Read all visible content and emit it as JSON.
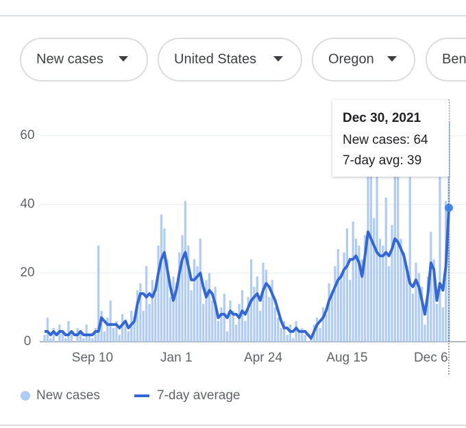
{
  "filters": [
    "New cases",
    "United States",
    "Oregon",
    "Ben"
  ],
  "chart_data": {
    "type": "bar_line",
    "categories": [
      null,
      null,
      null,
      null,
      null,
      null,
      null,
      null,
      null,
      null,
      null,
      null,
      null,
      null,
      null,
      null,
      "Sep 10",
      null,
      null,
      null,
      null,
      null,
      null,
      null,
      null,
      null,
      null,
      null,
      null,
      null,
      null,
      null,
      null,
      null,
      null,
      null,
      null,
      null,
      null,
      null,
      null,
      null,
      null,
      null,
      "Jan 1",
      null,
      null,
      null,
      null,
      null,
      null,
      null,
      null,
      null,
      null,
      null,
      null,
      null,
      null,
      null,
      null,
      null,
      null,
      null,
      null,
      null,
      null,
      null,
      null,
      null,
      null,
      null,
      null,
      "Apr 24",
      null,
      null,
      null,
      null,
      null,
      null,
      null,
      null,
      null,
      null,
      null,
      null,
      null,
      null,
      null,
      null,
      null,
      null,
      null,
      null,
      null,
      null,
      null,
      null,
      null,
      null,
      null,
      "Aug 15",
      null,
      null,
      null,
      null,
      null,
      null,
      null,
      null,
      null,
      null,
      null,
      null,
      null,
      null,
      null,
      null,
      null,
      null,
      null,
      null,
      null,
      null,
      null,
      null,
      null,
      null,
      null,
      "Dec 6",
      null,
      null,
      null,
      null,
      null,
      null
    ],
    "series": [
      {
        "name": "New cases",
        "color": "#aecbfa",
        "values": [
          2,
          7,
          1,
          4,
          0,
          5,
          3,
          1,
          6,
          2,
          0,
          4,
          3,
          1,
          5,
          2,
          1,
          4,
          28,
          9,
          3,
          7,
          12,
          4,
          6,
          2,
          8,
          5,
          3,
          9,
          7,
          15,
          17,
          9,
          22,
          11,
          18,
          14,
          28,
          37,
          33,
          24,
          13,
          19,
          17,
          26,
          31,
          41,
          28,
          15,
          24,
          22,
          30,
          11,
          18,
          20,
          12,
          16,
          6,
          10,
          14,
          3,
          12,
          9,
          5,
          11,
          15,
          6,
          13,
          24,
          16,
          19,
          9,
          23,
          21,
          13,
          18,
          10,
          7,
          4,
          6,
          2,
          5,
          1,
          6,
          3,
          4,
          2,
          0,
          1,
          5,
          7,
          4,
          10,
          8,
          17,
          15,
          22,
          27,
          20,
          26,
          33,
          18,
          35,
          30,
          28,
          24,
          31,
          48,
          50,
          36,
          48,
          30,
          28,
          42,
          22,
          34,
          50,
          48,
          30,
          26,
          22,
          48,
          14,
          23,
          20,
          16,
          5,
          19,
          32,
          24,
          11,
          48,
          10,
          41,
          64
        ]
      },
      {
        "name": "7-day average",
        "color": "#3367d6",
        "values": [
          3,
          3,
          2,
          3,
          2,
          3,
          3,
          2,
          2,
          3,
          2,
          2,
          3,
          2,
          2,
          2,
          2,
          3,
          3,
          7,
          6,
          5,
          5,
          5,
          5,
          4,
          5,
          6,
          4,
          5,
          6,
          11,
          14,
          14,
          13,
          14,
          13,
          15,
          20,
          24,
          26,
          21,
          16,
          12,
          15,
          20,
          24,
          26,
          22,
          18,
          18,
          19,
          20,
          16,
          13,
          15,
          14,
          11,
          7,
          8,
          8,
          7,
          9,
          8,
          8,
          7,
          9,
          8,
          10,
          12,
          13,
          14,
          12,
          15,
          17,
          16,
          14,
          12,
          9,
          6,
          4,
          4,
          3,
          3,
          4,
          3,
          3,
          3,
          2,
          1,
          3,
          5,
          6,
          7,
          9,
          12,
          14,
          16,
          18,
          19,
          21,
          22,
          24,
          24,
          25,
          23,
          19,
          25,
          32,
          30,
          28,
          26,
          25,
          25,
          26,
          25,
          27,
          30,
          29,
          27,
          25,
          21,
          17,
          16,
          18,
          16,
          12,
          8,
          14,
          23,
          21,
          12,
          17,
          15,
          22,
          39
        ]
      }
    ],
    "ylim": [
      0,
      70
    ],
    "yticks": [
      0,
      20,
      40,
      60
    ],
    "grid": true,
    "tooltip": {
      "date": "Dec 30, 2021",
      "labels": [
        "New cases:",
        "7-day avg:"
      ]
    }
  }
}
